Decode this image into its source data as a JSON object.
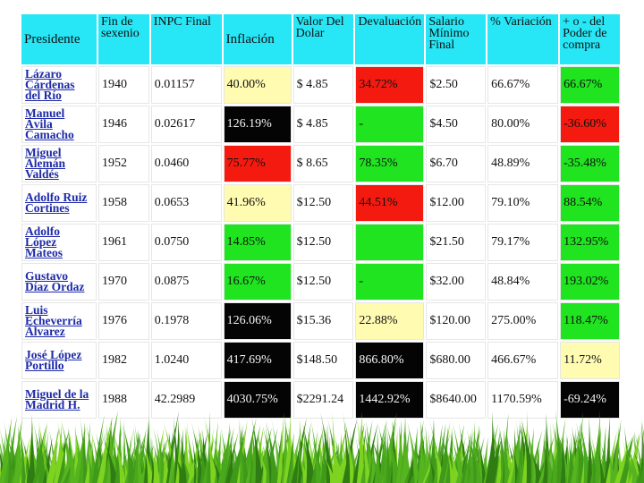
{
  "table": {
    "headers": [
      "Presidente",
      "Fin de sexenio",
      "INPC Final",
      "Inflación",
      "Valor Del Dolar",
      "Devaluación",
      "Salario Mínimo Final",
      "% Variación",
      "+ o - del Poder de compra"
    ],
    "rows": [
      {
        "cells": [
          "Lázaro Cárdenas del Río",
          "1940",
          "0.01157",
          "40.00%",
          "$ 4.85",
          "34.72%",
          "$2.50",
          "66.67%",
          "66.67%"
        ],
        "colors": [
          "",
          "",
          "",
          "#fffbb0",
          "",
          "#f41a0f",
          "",
          "",
          "#1fe41f"
        ]
      },
      {
        "cells": [
          "Manuel Ávila Camacho",
          "1946",
          "0.02617",
          "126.19%",
          "$ 4.85",
          "-",
          "$4.50",
          "80.00%",
          "-36.60%"
        ],
        "colors": [
          "",
          "",
          "",
          "#040404",
          "",
          "#1fe41f",
          "",
          "",
          "#f41a0f"
        ]
      },
      {
        "cells": [
          "Miguel Alemán Valdés",
          "1952",
          "0.0460",
          "75.77%",
          "$ 8.65",
          "78.35%",
          "$6.70",
          "48.89%",
          "-35.48%"
        ],
        "colors": [
          "",
          "",
          "",
          "#f41a0f",
          "",
          "#1fe41f",
          "",
          "",
          "#1fe41f"
        ]
      },
      {
        "cells": [
          "Adolfo Ruiz Cortines",
          "1958",
          "0.0653",
          "41.96%",
          "$12.50",
          "44.51%",
          "$12.00",
          "79.10%",
          "88.54%"
        ],
        "colors": [
          "",
          "",
          "",
          "#fffbb0",
          "",
          "#f41a0f",
          "",
          "",
          "#1fe41f"
        ]
      },
      {
        "cells": [
          "Adolfo López Mateos",
          "1961",
          "0.0750",
          "14.85%",
          "$12.50",
          "",
          "$21.50",
          "79.17%",
          "132.95%"
        ],
        "colors": [
          "",
          "",
          "",
          "#1fe41f",
          "",
          "#1fe41f",
          "",
          "",
          "#1fe41f"
        ]
      },
      {
        "cells": [
          "Gustavo Díaz Ordaz",
          "1970",
          "0.0875",
          "16.67%",
          "$12.50",
          "-",
          "$32.00",
          "48.84%",
          "193.02%"
        ],
        "colors": [
          "",
          "",
          "",
          "#1fe41f",
          "",
          "#1fe41f",
          "",
          "",
          "#1fe41f"
        ]
      },
      {
        "cells": [
          "Luis Echeverría Álvarez",
          "1976",
          "0.1978",
          "126.06%",
          "$15.36",
          "22.88%",
          "$120.00",
          "275.00%",
          "118.47%"
        ],
        "colors": [
          "",
          "",
          "",
          "#040404",
          "",
          "#fffbb0",
          "",
          "",
          "#1fe41f"
        ]
      },
      {
        "cells": [
          "José López Portillo",
          "1982",
          "1.0240",
          "417.69%",
          "$148.50",
          "866.80%",
          "$680.00",
          "466.67%",
          "11.72%"
        ],
        "colors": [
          "",
          "",
          "",
          "#040404",
          "",
          "#040404",
          "",
          "",
          "#fffbb0"
        ]
      },
      {
        "cells": [
          "Miguel de la Madrid H.",
          "1988",
          "42.2989",
          "4030.75%",
          "$2291.24",
          "1442.92%",
          "$8640.00",
          "1170.59%",
          "-69.24%"
        ],
        "colors": [
          "",
          "",
          "",
          "#040404",
          "",
          "#040404",
          "",
          "",
          "#040404"
        ]
      }
    ]
  },
  "colors": {
    "header": "#27e6f5",
    "green": "#1fe41f",
    "red": "#f41a0f",
    "yellow": "#fffbb0",
    "black": "#040404",
    "link": "#1d2aa8",
    "grass_dark": "#2f7d12",
    "grass_light": "#7ed321"
  }
}
